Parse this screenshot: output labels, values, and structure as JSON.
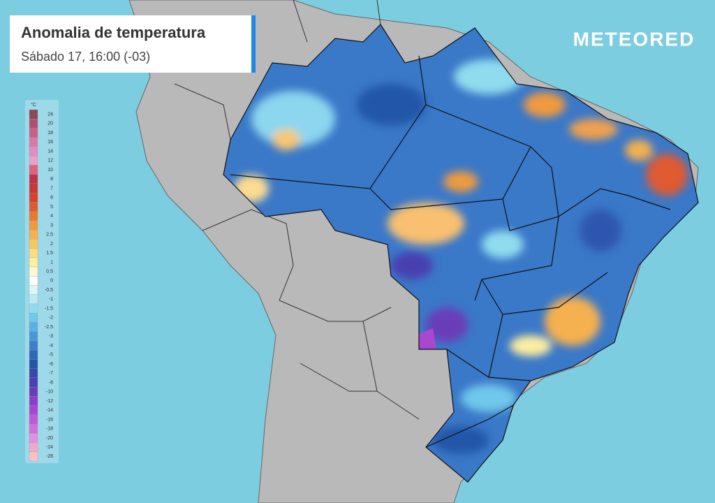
{
  "header": {
    "title": "Anomalia de temperatura",
    "subtitle": "Sábado 17, 16:00 (-03)"
  },
  "logo": "METEORED",
  "legend": {
    "unit": "°C",
    "values": [
      24,
      20,
      18,
      16,
      14,
      12,
      10,
      8,
      7,
      6,
      5,
      4,
      3,
      2.5,
      2,
      1.5,
      1,
      0.5,
      0,
      -0.5,
      -1,
      -1.5,
      -2,
      -2.5,
      -3,
      -4,
      -5,
      -6,
      -7,
      -8,
      -10,
      -12,
      -14,
      -16,
      -18,
      -20,
      -24,
      -28
    ],
    "colors": [
      "#8b4a5a",
      "#b05070",
      "#c8608a",
      "#d87aa8",
      "#e08cc0",
      "#e8a0c8",
      "#e06080",
      "#c0304a",
      "#c83838",
      "#d84030",
      "#e05a30",
      "#e87a30",
      "#f09a40",
      "#f5b050",
      "#f8c860",
      "#fbdc80",
      "#fdeea0",
      "#fff8d0",
      "#ffffff",
      "#e0f5f8",
      "#b8ecf2",
      "#90dcee",
      "#70c8ea",
      "#58b0e4",
      "#4898d8",
      "#3a80cc",
      "#2e68b8",
      "#2456a8",
      "#3848a8",
      "#4a40b0",
      "#6a3cb8",
      "#8a40c8",
      "#a848d0",
      "#c058d8",
      "#d070d8",
      "#e090e0",
      "#f0a8d0",
      "#f8c0c8"
    ]
  }
}
